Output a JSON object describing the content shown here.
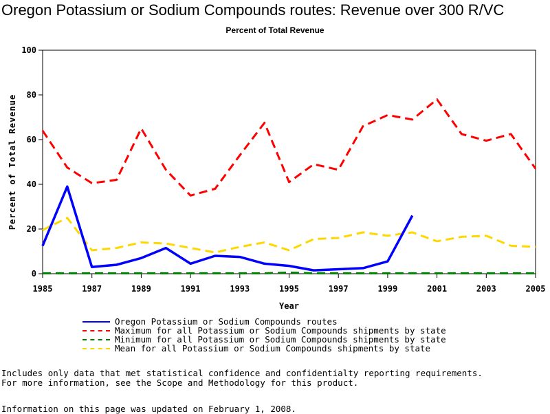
{
  "chart_data": {
    "type": "line",
    "title": "Oregon Potassium or Sodium Compounds routes: Revenue over 300 R/VC",
    "subtitle": "Percent of Total Revenue",
    "xlabel": "Year",
    "ylabel": "Percent of Total Revenue",
    "xlim": [
      1985,
      2005
    ],
    "ylim": [
      0,
      100
    ],
    "x_ticks": [
      1985,
      1987,
      1989,
      1991,
      1993,
      1995,
      1997,
      1999,
      2001,
      2003,
      2005
    ],
    "y_ticks": [
      0,
      20,
      40,
      60,
      80,
      100
    ],
    "series": [
      {
        "name": "Oregon Potassium or Sodium Compounds routes",
        "color": "#0000ff",
        "style": "solid",
        "x": [
          1985,
          1986,
          1987,
          1988,
          1989,
          1990,
          1991,
          1992,
          1993,
          1994,
          1995,
          1996,
          1997,
          1998,
          1999,
          2000
        ],
        "y": [
          12.5,
          39,
          3,
          4,
          7,
          11.5,
          4.5,
          8,
          7.5,
          4.5,
          3.5,
          1.5,
          2,
          2.5,
          5.5,
          26
        ]
      },
      {
        "name": "Maximum for all Potassium or Sodium Compounds shipments by state",
        "color": "#ff0000",
        "style": "dashed",
        "x": [
          1985,
          1986,
          1987,
          1988,
          1989,
          1990,
          1991,
          1992,
          1993,
          1994,
          1995,
          1996,
          1997,
          1998,
          1999,
          2000,
          2001,
          2002,
          2003,
          2004,
          2005
        ],
        "y": [
          64,
          47.5,
          40.5,
          42,
          65,
          46.5,
          35,
          38,
          53,
          67.5,
          41,
          49,
          46.5,
          66,
          71,
          69,
          78,
          62.5,
          59.5,
          62.5,
          47
        ]
      },
      {
        "name": "Minimum for all Potassium or Sodium Compounds shipments by state",
        "color": "#008000",
        "style": "dashed",
        "x": [
          1985,
          1986,
          1987,
          1988,
          1989,
          1990,
          1991,
          1992,
          1993,
          1994,
          1995,
          1996,
          1997,
          1998,
          1999,
          2000,
          2001,
          2002,
          2003,
          2004,
          2005
        ],
        "y": [
          0.2,
          0.2,
          0.2,
          0.2,
          0.2,
          0.2,
          0.2,
          0.2,
          0.2,
          0.2,
          0.5,
          0.2,
          0.2,
          0.2,
          0.2,
          0.2,
          0.2,
          0.2,
          0.2,
          0.2,
          0.2
        ]
      },
      {
        "name": "Mean for all Potassium or Sodium Compounds shipments by state",
        "color": "#ffd700",
        "style": "dashed",
        "x": [
          1985,
          1986,
          1987,
          1988,
          1989,
          1990,
          1991,
          1992,
          1993,
          1994,
          1995,
          1996,
          1997,
          1998,
          1999,
          2000,
          2001,
          2002,
          2003,
          2004,
          2005
        ],
        "y": [
          19.5,
          25,
          10.5,
          11.5,
          14,
          13.5,
          11.5,
          9.5,
          12,
          14,
          10.5,
          15.5,
          16,
          18.5,
          17,
          18.5,
          14.5,
          16.5,
          17,
          12.5,
          12
        ]
      }
    ]
  },
  "legend": {
    "items": [
      {
        "label": "Oregon Potassium or Sodium Compounds routes",
        "color": "#0000ff"
      },
      {
        "label": "Maximum for all Potassium or Sodium Compounds shipments by state",
        "color": "#ff0000"
      },
      {
        "label": "Minimum for all Potassium or Sodium Compounds shipments by state",
        "color": "#008000"
      },
      {
        "label": "Mean for all Potassium or Sodium Compounds shipments by state",
        "color": "#ffd700"
      }
    ]
  },
  "notes": {
    "line1": "Includes only data that met statistical confidence and confidentialty reporting requirements.",
    "line2": "For more information, see the Scope and Methodology for this product."
  },
  "updated": "Information on this page was updated on February 1, 2008."
}
